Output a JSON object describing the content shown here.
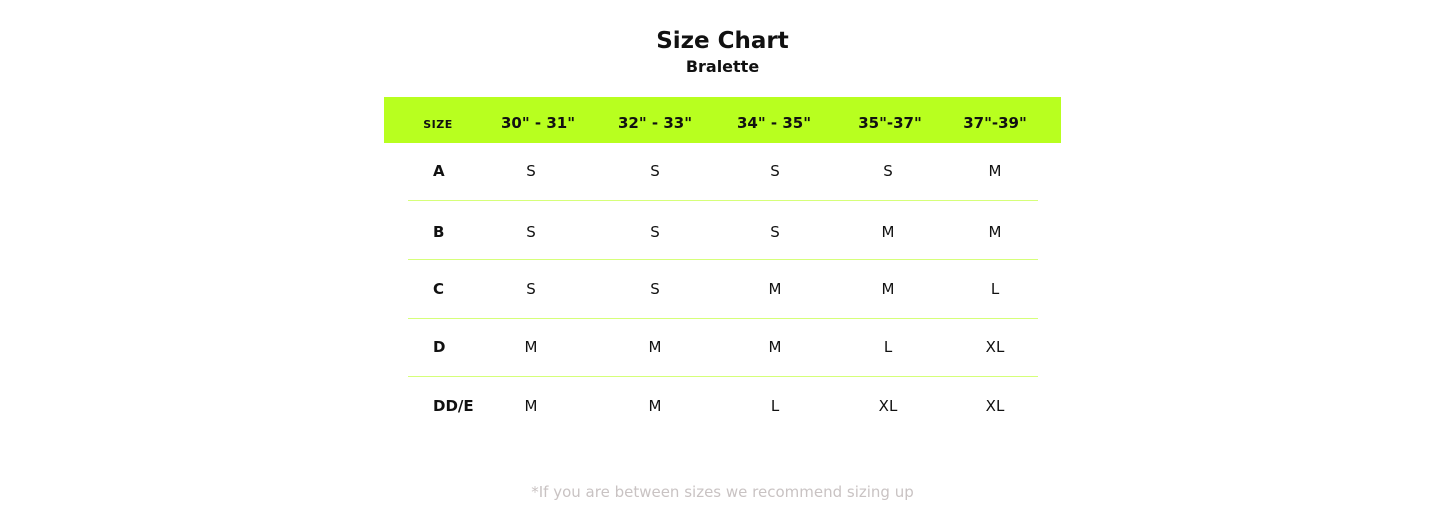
{
  "title": "Size Chart",
  "subtitle": "Bralette",
  "colors": {
    "header_bg": "#b8ff1f",
    "divider": "#d6ff7a",
    "note": "#c9c3c3"
  },
  "table": {
    "headers": [
      "SIZE",
      "30\" - 31\"",
      "32\" - 33\"",
      "34\" - 35\"",
      "35\"-37\"",
      "37\"-39\""
    ],
    "rows": [
      {
        "label": "A",
        "values": [
          "S",
          "S",
          "S",
          "S",
          "M"
        ]
      },
      {
        "label": "B",
        "values": [
          "S",
          "S",
          "S",
          "M",
          "M"
        ]
      },
      {
        "label": "C",
        "values": [
          "S",
          "S",
          "M",
          "M",
          "L"
        ]
      },
      {
        "label": "D",
        "values": [
          "M",
          "M",
          "M",
          "L",
          "XL"
        ]
      },
      {
        "label": "DD/E",
        "values": [
          "M",
          "M",
          "L",
          "XL",
          "XL"
        ]
      }
    ]
  },
  "note": "*If you are between sizes we recommend sizing up"
}
